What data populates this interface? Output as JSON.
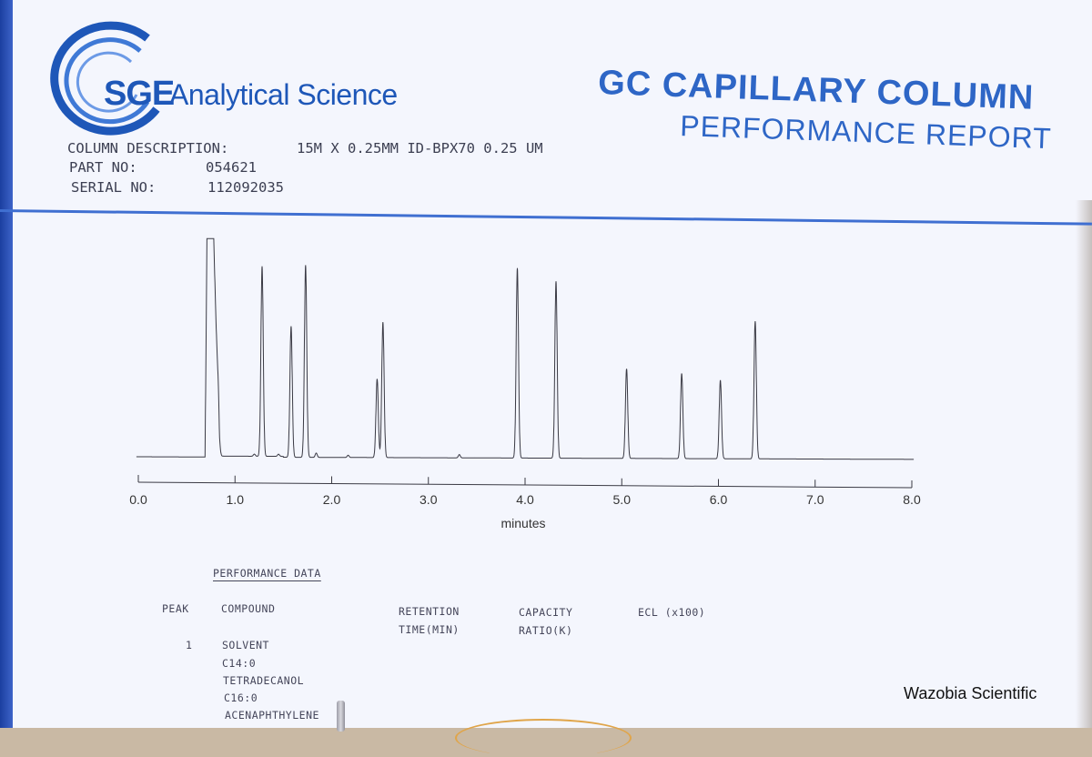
{
  "brand": {
    "logo_abbrev": "SGE",
    "logo_text": "Analytical Science",
    "color": "#1e57b8"
  },
  "report": {
    "title": "GC CAPILLARY COLUMN",
    "subtitle": "PERFORMANCE REPORT",
    "accent_color": "#2e66c6"
  },
  "column_info": {
    "description_label": "COLUMN DESCRIPTION:",
    "description_value": "15M X 0.25MM ID-BPX70 0.25 UM",
    "part_label": "PART NO:",
    "part_value": "054621",
    "serial_label": "SERIAL NO:",
    "serial_value": "112092035"
  },
  "chart_data": {
    "type": "line",
    "xlabel": "minutes",
    "xlim": [
      0.0,
      8.0
    ],
    "x_ticks": [
      "0.0",
      "1.0",
      "2.0",
      "3.0",
      "4.0",
      "5.0",
      "6.0",
      "7.0",
      "8.0"
    ],
    "grid": false,
    "baseline": 0.04,
    "peaks": [
      {
        "rt": 0.72,
        "height": 1.0,
        "flat_top": true
      },
      {
        "rt": 0.83,
        "height": 0.12
      },
      {
        "rt": 1.2,
        "height": 0.01
      },
      {
        "rt": 1.28,
        "height": 0.87
      },
      {
        "rt": 1.45,
        "height": 0.01
      },
      {
        "rt": 1.58,
        "height": 0.6
      },
      {
        "rt": 1.73,
        "height": 0.88
      },
      {
        "rt": 1.84,
        "height": 0.02
      },
      {
        "rt": 2.17,
        "height": 0.01
      },
      {
        "rt": 2.47,
        "height": 0.36
      },
      {
        "rt": 2.53,
        "height": 0.62
      },
      {
        "rt": 3.32,
        "height": 0.015
      },
      {
        "rt": 3.92,
        "height": 0.87
      },
      {
        "rt": 4.32,
        "height": 0.81
      },
      {
        "rt": 5.05,
        "height": 0.41
      },
      {
        "rt": 5.62,
        "height": 0.39
      },
      {
        "rt": 6.02,
        "height": 0.36
      },
      {
        "rt": 6.38,
        "height": 0.63
      }
    ]
  },
  "performance": {
    "title": "PERFORMANCE DATA",
    "headers": {
      "peak": "PEAK",
      "compound": "COMPOUND",
      "retention_1": "RETENTION",
      "retention_2": "TIME(MIN)",
      "capacity_1": "CAPACITY",
      "capacity_2": "RATIO(K)",
      "ecl": "ECL (x100)"
    },
    "rows": [
      {
        "peak": "1",
        "compound": "SOLVENT"
      },
      {
        "peak": "",
        "compound": "C14:0"
      },
      {
        "peak": "",
        "compound": "TETRADECANOL"
      },
      {
        "peak": "",
        "compound": "C16:0"
      },
      {
        "peak": "",
        "compound": "ACENAPHTHYLENE"
      }
    ]
  },
  "watermark": "Wazobia Scientific"
}
